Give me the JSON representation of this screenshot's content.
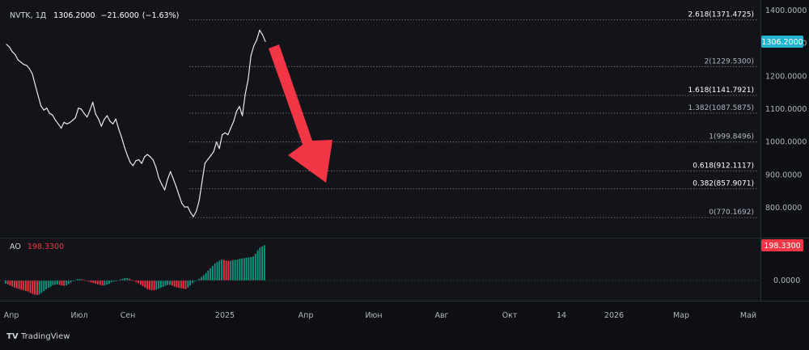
{
  "header": {
    "symbol": "NVTK",
    "timeframe": "1Д",
    "price": "1306.2000",
    "change": "−21.6000",
    "change_pct": "(−1.63%)"
  },
  "main_pane": {
    "price_tag": "1306.2000",
    "price_tag_color": "#22b5cf",
    "axis_ticks": [
      "1400.0000",
      "1300.0000",
      "1200.0000",
      "1100.0000",
      "1000.0000",
      "900.0000",
      "800.0000"
    ],
    "fib_levels": [
      {
        "label": "2.618(1371.4725)",
        "value": 1371.4725,
        "bold": true
      },
      {
        "label": "2(1229.5300)",
        "value": 1229.53,
        "bold": false
      },
      {
        "label": "1.618(1141.7921)",
        "value": 1141.7921,
        "bold": true
      },
      {
        "label": "1.382(1087.5875)",
        "value": 1087.5875,
        "bold": false
      },
      {
        "label": "1(999.8496)",
        "value": 999.8496,
        "bold": false
      },
      {
        "label": "0.618(912.1117)",
        "value": 912.1117,
        "bold": true
      },
      {
        "label": "0.382(857.9071)",
        "value": 857.9071,
        "bold": true
      },
      {
        "label": "0(770.1692)",
        "value": 770.1692,
        "bold": false
      }
    ]
  },
  "indicator_pane": {
    "name": "AO",
    "value": "198.3300",
    "value_tag": "198.3300",
    "value_tag_color": "#f23645",
    "axis_tick": "0.0000",
    "up_color": "#089981",
    "down_color": "#f23645"
  },
  "time_axis": {
    "labels": [
      "Апр",
      "Июл",
      "Сен",
      "2025",
      "Апр",
      "Июн",
      "Авг",
      "Окт",
      "14",
      "2026",
      "Мар",
      "Май"
    ]
  },
  "footer": {
    "brand": "TradingView"
  },
  "annotation": {
    "arrow_color": "#f23645",
    "direction": "down"
  },
  "chart_data": [
    {
      "type": "line",
      "title": "NVTK, 1Д",
      "series": [
        {
          "name": "NVTK",
          "values": [
            1297,
            1289,
            1275,
            1266,
            1250,
            1243,
            1236,
            1233,
            1223,
            1207,
            1173,
            1141,
            1109,
            1097,
            1103,
            1087,
            1082,
            1067,
            1055,
            1042,
            1060,
            1055,
            1059,
            1066,
            1074,
            1103,
            1100,
            1087,
            1076,
            1096,
            1121,
            1085,
            1070,
            1048,
            1069,
            1080,
            1063,
            1055,
            1070,
            1040,
            1015,
            985,
            960,
            938,
            928,
            943,
            946,
            935,
            955,
            962,
            955,
            945,
            922,
            890,
            871,
            854,
            886,
            910,
            888,
            864,
            838,
            813,
            802,
            803,
            785,
            773,
            790,
            822,
            880,
            935,
            947,
            958,
            970,
            1000,
            980,
            1022,
            1028,
            1022,
            1043,
            1063,
            1093,
            1108,
            1080,
            1145,
            1190,
            1262,
            1293,
            1310,
            1340,
            1327,
            1306
          ]
        }
      ],
      "ylim": [
        700,
        1400
      ],
      "y_ticks": [
        800,
        900,
        1000,
        1100,
        1200,
        1300,
        1400
      ],
      "grid": false,
      "last_value": 1306.2
    },
    {
      "type": "bar",
      "title": "AO",
      "series": [
        {
          "name": "AO",
          "values": [
            -18,
            -22,
            -28,
            -34,
            -40,
            -44,
            -48,
            -52,
            -55,
            -58,
            -62,
            -70,
            -76,
            -80,
            -82,
            -78,
            -70,
            -60,
            -50,
            -42,
            -34,
            -26,
            -24,
            -22,
            -25,
            -28,
            -30,
            -27,
            -20,
            -12,
            -4,
            4,
            8,
            8,
            6,
            4,
            -2,
            -6,
            -10,
            -14,
            -18,
            -22,
            -26,
            -28,
            -28,
            -24,
            -18,
            -10,
            -6,
            -4,
            0,
            6,
            10,
            14,
            14,
            10,
            4,
            -4,
            -10,
            -16,
            -24,
            -32,
            -40,
            -48,
            -52,
            -54,
            -55,
            -52,
            -46,
            -40,
            -36,
            -30,
            -26,
            -24,
            -28,
            -34,
            -38,
            -42,
            -44,
            -46,
            -48,
            -40,
            -28,
            -14,
            -6,
            2,
            10,
            20,
            30,
            42,
            56,
            70,
            82,
            96,
            104,
            112,
            118,
            116,
            112,
            110,
            112,
            114,
            116,
            118,
            122,
            124,
            126,
            128,
            130,
            132,
            136,
            150,
            170,
            185,
            192,
            198.33
          ]
        }
      ],
      "zero_line": 0
    }
  ]
}
